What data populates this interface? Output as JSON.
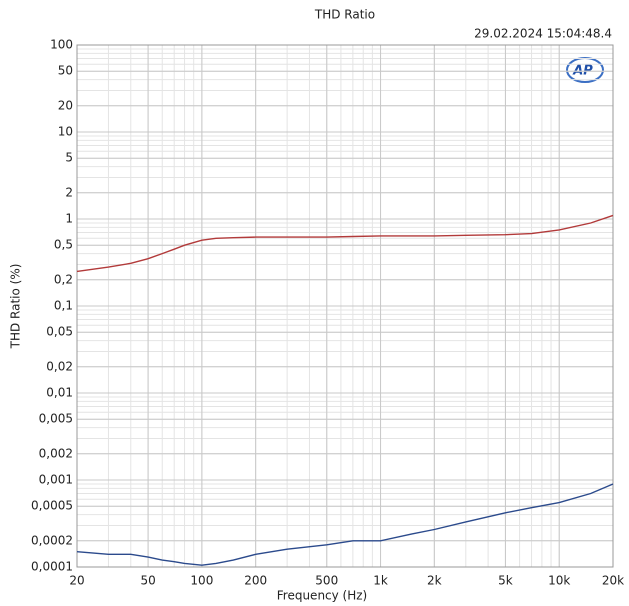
{
  "chart_data": {
    "type": "line",
    "title": "THD Ratio",
    "timestamp": "29.02.2024 15:04:48.4",
    "logo": "AP",
    "x_label": "Frequency (Hz)",
    "y_label": "THD Ratio (%)",
    "xscale": "log",
    "yscale": "log",
    "grid": true,
    "xlim": [
      20,
      20000
    ],
    "ylim": [
      0.0001,
      100
    ],
    "xticks": [
      20,
      50,
      100,
      200,
      500,
      {
        "value": 1000,
        "label": "1k"
      },
      {
        "value": 2000,
        "label": "2k"
      },
      {
        "value": 5000,
        "label": "5k"
      },
      {
        "value": 10000,
        "label": "10k"
      },
      {
        "value": 20000,
        "label": "20k"
      }
    ],
    "yticks": [
      100,
      50,
      20,
      10,
      5,
      2,
      1,
      {
        "value": 0.5,
        "label": "0,5"
      },
      {
        "value": 0.2,
        "label": "0,2"
      },
      {
        "value": 0.1,
        "label": "0,1"
      },
      {
        "value": 0.05,
        "label": "0,05"
      },
      {
        "value": 0.02,
        "label": "0,02"
      },
      {
        "value": 0.01,
        "label": "0,01"
      },
      {
        "value": 0.005,
        "label": "0,005"
      },
      {
        "value": 0.002,
        "label": "0,002"
      },
      {
        "value": 0.001,
        "label": "0,001"
      },
      {
        "value": 0.0005,
        "label": "0,0005"
      },
      {
        "value": 0.0002,
        "label": "0,0002"
      },
      {
        "value": 0.0001,
        "label": "0,0001"
      }
    ],
    "x": [
      20,
      30,
      40,
      50,
      60,
      70,
      80,
      100,
      120,
      150,
      200,
      300,
      500,
      700,
      1000,
      1500,
      2000,
      3000,
      5000,
      7000,
      10000,
      15000,
      20000
    ],
    "series": [
      {
        "color": "#b23a3a",
        "values": [
          0.25,
          0.28,
          0.31,
          0.35,
          0.4,
          0.45,
          0.5,
          0.57,
          0.6,
          0.61,
          0.62,
          0.62,
          0.62,
          0.63,
          0.64,
          0.64,
          0.64,
          0.65,
          0.66,
          0.68,
          0.75,
          0.9,
          1.1
        ]
      },
      {
        "color": "#2b4a8c",
        "values": [
          0.00015,
          0.00014,
          0.00014,
          0.00013,
          0.00012,
          0.000115,
          0.00011,
          0.000105,
          0.00011,
          0.00012,
          0.00014,
          0.00016,
          0.00018,
          0.0002,
          0.0002,
          0.00024,
          0.00027,
          0.00033,
          0.00042,
          0.00048,
          0.00055,
          0.0007,
          0.0009
        ]
      }
    ]
  }
}
